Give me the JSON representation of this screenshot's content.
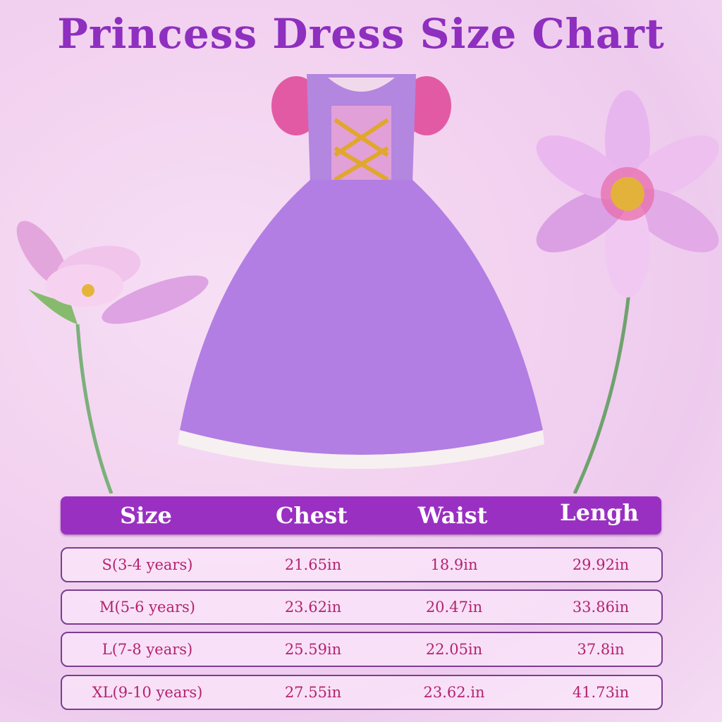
{
  "title": "Princess Dress Size Chart",
  "colors": {
    "title": "#8e2fbf",
    "header_bg": "#9a30c2",
    "row_border": "#7b3d92",
    "row_text": "#b3236f"
  },
  "table": {
    "headers": [
      "Size",
      "Chest",
      "Waist",
      "Lengh"
    ],
    "rows": [
      [
        "S(3-4 years)",
        "21.65in",
        "18.9in",
        "29.92in"
      ],
      [
        "M(5-6 years)",
        "23.62in",
        "20.47in",
        "33.86in"
      ],
      [
        "L(7-8 years)",
        "25.59in",
        "22.05in",
        "37.8in"
      ],
      [
        "XL(9-10 years)",
        "27.55in",
        "23.62.in",
        "41.73in"
      ]
    ]
  }
}
